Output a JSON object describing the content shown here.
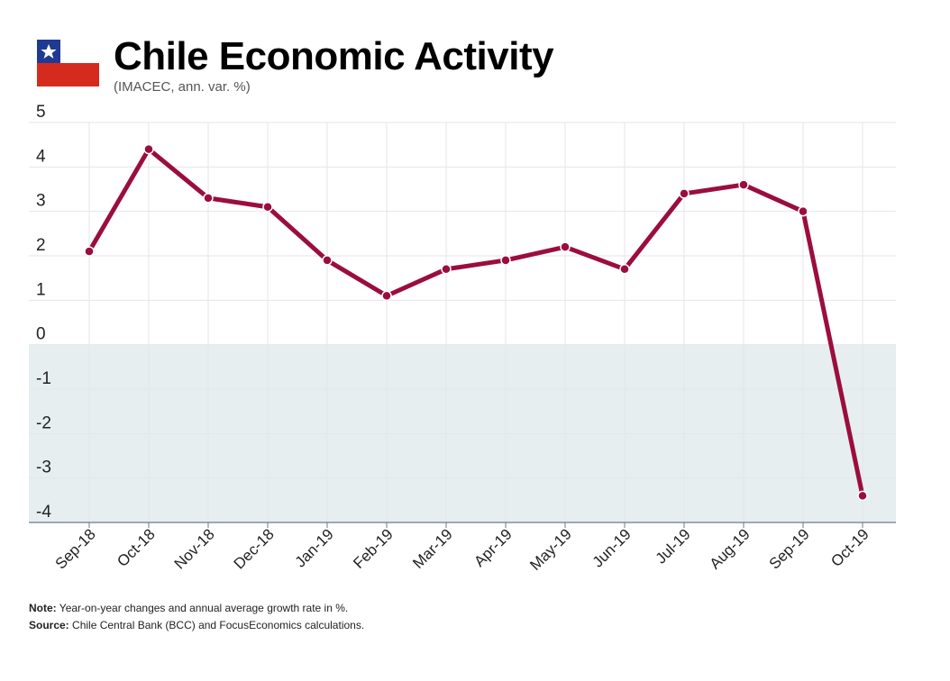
{
  "header": {
    "title": "Chile Economic Activity",
    "subtitle": "(IMACEC, ann. var. %)"
  },
  "footer": {
    "note_label": "Note:",
    "note_text": "Year-on-year changes and annual average growth rate in %.",
    "source_label": "Source:",
    "source_text": "Chile Central Bank (BCC) and FocusEconomics calculations."
  },
  "colors": {
    "line": "#9b0e3c",
    "negative_band": "#e6eef0",
    "grid": "#e6e6e6",
    "flag_blue": "#1f3a93",
    "flag_red": "#d52b1e"
  },
  "chart_data": {
    "type": "line",
    "title": "Chile Economic Activity",
    "subtitle": "(IMACEC, ann. var. %)",
    "categories": [
      "Sep-18",
      "Oct-18",
      "Nov-18",
      "Dec-18",
      "Jan-19",
      "Feb-19",
      "Mar-19",
      "Apr-19",
      "May-19",
      "Jun-19",
      "Jul-19",
      "Aug-19",
      "Sep-19",
      "Oct-19"
    ],
    "values": [
      2.1,
      4.4,
      3.3,
      3.1,
      1.9,
      1.1,
      1.7,
      1.9,
      2.2,
      1.7,
      3.4,
      3.6,
      3.0,
      -3.4
    ],
    "ylim": [
      -4,
      5
    ],
    "yticks": [
      5,
      4,
      3,
      2,
      1,
      0,
      -1,
      -2,
      -3,
      -4
    ],
    "xlabel": "",
    "ylabel": "",
    "grid": true,
    "negative_region_shaded": true
  }
}
